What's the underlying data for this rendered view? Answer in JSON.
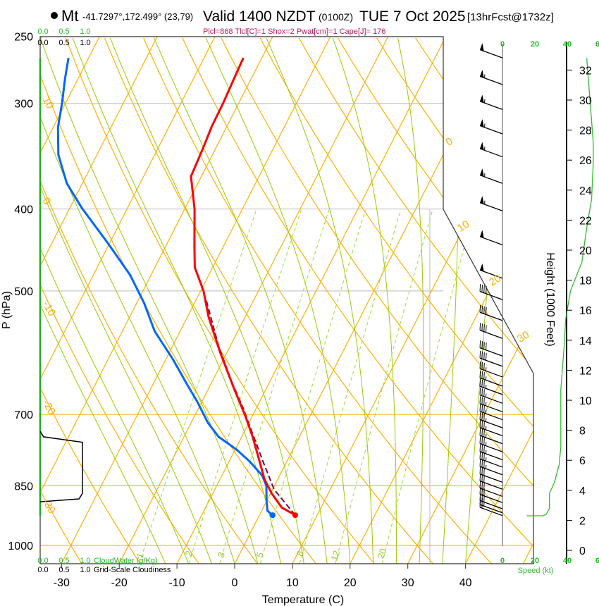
{
  "header": {
    "station": "Mt",
    "coords": "-41.7297°,172.499° (23,79)",
    "valid": "Valid 1400 NZDT",
    "utc": "(0100Z)",
    "date": "TUE 7 Oct 2025",
    "forecast": "[13hrFcst@1732z]",
    "indices": "Plcl=868 Tlcl[C]=1 Shox=2 Pwat[cm]=1 Cape[J]= 176"
  },
  "colors": {
    "temperature": "#ff0000",
    "dewpoint": "#0066ff",
    "parcel": "#800040",
    "isotherm": "#ffb000",
    "moist_adiabat": "#99cc00",
    "mixing_ratio": "#99dd33",
    "speed": "#33bb33",
    "indices": "#c0185a"
  },
  "chart_data": {
    "type": "skewt",
    "xlabel": "Temperature (C)",
    "ylabel": "P (hPa)",
    "pressure_ticks": [
      "250",
      "300",
      "400",
      "500",
      "700",
      "850",
      "1000"
    ],
    "temperature_ticks": [
      "-30",
      "-20",
      "-10",
      "0",
      "10",
      "20",
      "30",
      "40"
    ],
    "isotherm_labels": [
      "0",
      "10",
      "20",
      "30"
    ],
    "dry_adiabat_labels": [
      "10",
      "0",
      "-10",
      "-20",
      "-30"
    ],
    "mixing_ratio_labels": [
      "1",
      "2",
      "3",
      "5",
      "8",
      "12",
      "20"
    ],
    "temperature_profile": [
      [
        921,
        6.2
      ],
      [
        902,
        3.2
      ],
      [
        868,
        0.2
      ],
      [
        835,
        -2.3
      ],
      [
        788,
        -5.2
      ],
      [
        744,
        -8.1
      ],
      [
        703,
        -11.2
      ],
      [
        651,
        -15.7
      ],
      [
        591,
        -21.2
      ],
      [
        537,
        -26.3
      ],
      [
        500,
        -29.5
      ],
      [
        469,
        -33.1
      ],
      [
        443,
        -35.0
      ],
      [
        400,
        -38.3
      ],
      [
        366,
        -41.8
      ],
      [
        339,
        -42.2
      ],
      [
        320,
        -42.6
      ],
      [
        300,
        -42.7
      ],
      [
        285,
        -42.9
      ],
      [
        265,
        -43.2
      ]
    ],
    "dewpoint_profile": [
      [
        921,
        2.3
      ],
      [
        910,
        1.0
      ],
      [
        884,
        -0.1
      ],
      [
        850,
        -1.4
      ],
      [
        827,
        -3.0
      ],
      [
        796,
        -6.4
      ],
      [
        770,
        -9.8
      ],
      [
        744,
        -14.0
      ],
      [
        716,
        -17.1
      ],
      [
        676,
        -20.8
      ],
      [
        644,
        -24.2
      ],
      [
        602,
        -28.8
      ],
      [
        558,
        -34.4
      ],
      [
        517,
        -38.7
      ],
      [
        479,
        -43.6
      ],
      [
        439,
        -50.3
      ],
      [
        399,
        -57.9
      ],
      [
        373,
        -62.7
      ],
      [
        345,
        -66.7
      ],
      [
        320,
        -69.2
      ],
      [
        300,
        -70.6
      ],
      [
        280,
        -72.3
      ],
      [
        265,
        -73.5
      ]
    ],
    "parcel_profile": [
      [
        921,
        6.2
      ],
      [
        859,
        0.3
      ],
      [
        803,
        -3.6
      ],
      [
        744,
        -7.9
      ],
      [
        689,
        -12.2
      ],
      [
        638,
        -16.8
      ],
      [
        580,
        -22.1
      ],
      [
        512,
        -28.3
      ]
    ],
    "cloud": {
      "cloudwater_label": "CloudWater (g/Kg)",
      "cloudiness_label": "Grid-Scale Cloudiness",
      "ticks": [
        "0.0",
        "0.5",
        "1.0"
      ],
      "cloudiness": [
        [
          733,
          0.0
        ],
        [
          744,
          0.08
        ],
        [
          755,
          1.0
        ],
        [
          868,
          1.0
        ],
        [
          881,
          0.92
        ],
        [
          888,
          0.0
        ]
      ],
      "cloudwater": [
        [
          265,
          0.0
        ],
        [
          922,
          0.0
        ]
      ]
    },
    "wind": {
      "speed_label": "Speed (kt)",
      "speed_ticks": [
        "0",
        "20",
        "40",
        "60"
      ],
      "speed_profile": [
        [
          32.8,
          52
        ],
        [
          30,
          54
        ],
        [
          27.2,
          56
        ],
        [
          25.8,
          56
        ],
        [
          23.4,
          55
        ],
        [
          21.5,
          52
        ],
        [
          19.2,
          49
        ],
        [
          17.3,
          42
        ],
        [
          15.4,
          39
        ],
        [
          13.5,
          38
        ],
        [
          10.7,
          36
        ],
        [
          6.9,
          36
        ],
        [
          5.7,
          35
        ],
        [
          4.5,
          32
        ],
        [
          3.8,
          29
        ],
        [
          2.8,
          29
        ],
        [
          2.4,
          27
        ],
        [
          2.3,
          25
        ],
        [
          2.3,
          15
        ]
      ],
      "barbs": [
        [
          265,
          52,
          250
        ],
        [
          285,
          54,
          250
        ],
        [
          305,
          55,
          250
        ],
        [
          326,
          56,
          250
        ],
        [
          347,
          56,
          250
        ],
        [
          373,
          55,
          250
        ],
        [
          402,
          55,
          250
        ],
        [
          441,
          52,
          250
        ],
        [
          483,
          48,
          250
        ],
        [
          512,
          42,
          250
        ],
        [
          542,
          40,
          250
        ],
        [
          569,
          39,
          250
        ],
        [
          597,
          38,
          250
        ],
        [
          614,
          38,
          250
        ],
        [
          632,
          37,
          250
        ],
        [
          648,
          37,
          250
        ],
        [
          663,
          36,
          250
        ],
        [
          679,
          36,
          250
        ],
        [
          695,
          36,
          250
        ],
        [
          710,
          36,
          250
        ],
        [
          726,
          36,
          250
        ],
        [
          742,
          35,
          250
        ],
        [
          758,
          35,
          250
        ],
        [
          775,
          35,
          250
        ],
        [
          792,
          35,
          250
        ],
        [
          808,
          34,
          250
        ],
        [
          825,
          33,
          250
        ],
        [
          842,
          32,
          250
        ],
        [
          858,
          30,
          250
        ],
        [
          875,
          29,
          250
        ],
        [
          890,
          29,
          250
        ],
        [
          905,
          28,
          250
        ],
        [
          915,
          25,
          250
        ],
        [
          922,
          15,
          250
        ]
      ]
    },
    "height": {
      "label": "Height (1000 Feet)",
      "ticks": [
        "0",
        "2",
        "4",
        "6",
        "8",
        "10",
        "12",
        "14",
        "16",
        "18",
        "20",
        "22",
        "24",
        "26",
        "28",
        "30",
        "32"
      ]
    }
  }
}
